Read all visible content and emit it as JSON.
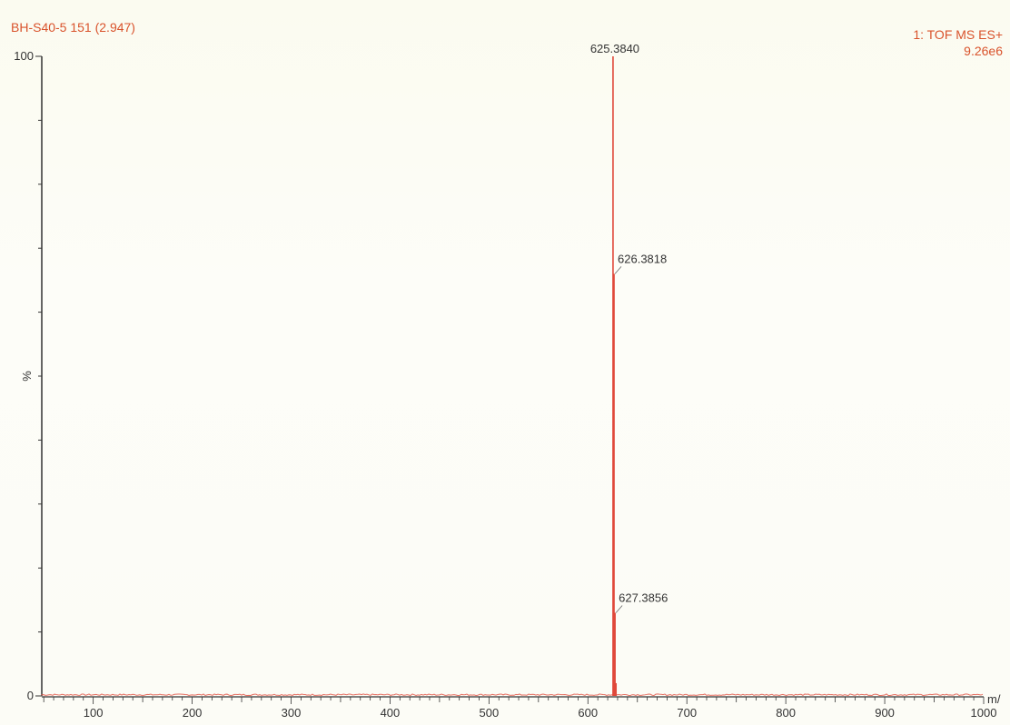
{
  "header": {
    "sample_title": "BH-S40-5 151 (2.947)",
    "function_label": "1: TOF MS ES+",
    "max_intensity": "9.26e6"
  },
  "colors": {
    "spectrum": "#e0483a",
    "header_text": "#d9532c",
    "axis": "#333333"
  },
  "chart_data": {
    "type": "line",
    "title": "BH-S40-5 151 (2.947)",
    "xlabel": "m/",
    "ylabel": "%",
    "xlim": [
      48,
      1000
    ],
    "ylim": [
      0,
      100
    ],
    "x_ticks": [
      100,
      200,
      300,
      400,
      500,
      600,
      700,
      800,
      900,
      1000
    ],
    "y_ticks": [
      0,
      100
    ],
    "series": [
      {
        "values": [
          [
            625.384,
            100
          ],
          [
            626.3818,
            66
          ],
          [
            627.3856,
            13
          ],
          [
            628.4,
            2
          ]
        ]
      }
    ],
    "annotations": [
      {
        "text": "625.3840",
        "x": 625.384,
        "y": 100
      },
      {
        "text": "626.3818",
        "x": 626.3818,
        "y": 66
      },
      {
        "text": "627.3856",
        "x": 627.3856,
        "y": 13
      }
    ],
    "grid": false
  }
}
